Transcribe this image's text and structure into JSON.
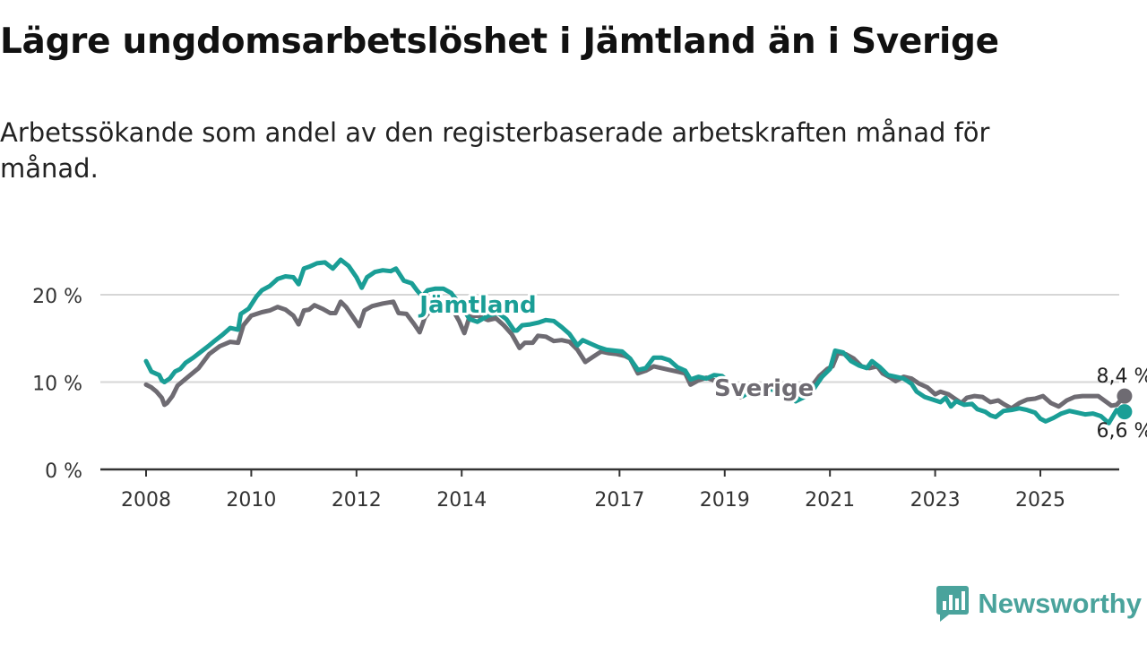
{
  "header": {
    "title": "Lägre ungdomsarbetslöshet i Jämtland än i Sverige",
    "subtitle": "Arbetssökande som andel av den registerbaserade arbetskraften månad för månad."
  },
  "brand": {
    "name": "Newsworthy",
    "icon": "bar-chart-logo-icon",
    "color": "#4aa39c"
  },
  "chart_data": {
    "type": "line",
    "title": "Lägre ungdomsarbetslöshet i Jämtland än i Sverige",
    "subtitle": "Arbetssökande som andel av den registerbaserade arbetskraften månad för månad.",
    "xlabel": "",
    "ylabel": "",
    "xlim": [
      2008,
      2026.5
    ],
    "ylim": [
      0,
      25
    ],
    "x_ticks": [
      2008,
      2010,
      2012,
      2014,
      2017,
      2019,
      2021,
      2023,
      2025
    ],
    "x_tick_labels": [
      "2008",
      "2010",
      "2012",
      "2014",
      "2017",
      "2019",
      "2021",
      "2023",
      "2025"
    ],
    "y_ticks": [
      0,
      10,
      20
    ],
    "y_tick_labels": [
      "0 %",
      "10 %",
      "20 %"
    ],
    "grid": true,
    "legend": "inline labels",
    "series": [
      {
        "name": "Sverige",
        "color": "#6e6b72",
        "end_label": "8,4 %",
        "points": [
          [
            2008.0,
            9.7
          ],
          [
            2008.1,
            9.4
          ],
          [
            2008.2,
            8.9
          ],
          [
            2008.3,
            8.2
          ],
          [
            2008.35,
            7.4
          ],
          [
            2008.4,
            7.6
          ],
          [
            2008.5,
            8.4
          ],
          [
            2008.6,
            9.6
          ],
          [
            2008.8,
            10.6
          ],
          [
            2009.0,
            11.6
          ],
          [
            2009.2,
            13.2
          ],
          [
            2009.4,
            14.1
          ],
          [
            2009.6,
            14.6
          ],
          [
            2009.75,
            14.5
          ],
          [
            2009.85,
            16.5
          ],
          [
            2010.0,
            17.6
          ],
          [
            2010.2,
            18.0
          ],
          [
            2010.35,
            18.2
          ],
          [
            2010.5,
            18.6
          ],
          [
            2010.65,
            18.3
          ],
          [
            2010.8,
            17.6
          ],
          [
            2010.9,
            16.6
          ],
          [
            2011.0,
            18.2
          ],
          [
            2011.1,
            18.3
          ],
          [
            2011.2,
            18.8
          ],
          [
            2011.35,
            18.4
          ],
          [
            2011.5,
            17.9
          ],
          [
            2011.6,
            17.9
          ],
          [
            2011.7,
            19.2
          ],
          [
            2011.8,
            18.6
          ],
          [
            2011.95,
            17.3
          ],
          [
            2012.05,
            16.4
          ],
          [
            2012.15,
            18.2
          ],
          [
            2012.3,
            18.7
          ],
          [
            2012.5,
            19.0
          ],
          [
            2012.7,
            19.2
          ],
          [
            2012.8,
            17.9
          ],
          [
            2012.95,
            17.8
          ],
          [
            2013.1,
            16.6
          ],
          [
            2013.2,
            15.7
          ],
          [
            2013.3,
            17.4
          ],
          [
            2013.45,
            18.5
          ],
          [
            2013.6,
            19.0
          ],
          [
            2013.8,
            18.6
          ],
          [
            2013.95,
            17.0
          ],
          [
            2014.0,
            16.3
          ],
          [
            2014.05,
            15.6
          ],
          [
            2014.15,
            17.5
          ],
          [
            2014.3,
            17.6
          ],
          [
            2014.5,
            17.1
          ],
          [
            2014.65,
            17.3
          ],
          [
            2014.8,
            16.5
          ],
          [
            2014.95,
            15.5
          ],
          [
            2015.1,
            13.9
          ],
          [
            2015.2,
            14.5
          ],
          [
            2015.35,
            14.5
          ],
          [
            2015.45,
            15.3
          ],
          [
            2015.6,
            15.2
          ],
          [
            2015.75,
            14.7
          ],
          [
            2015.9,
            14.8
          ],
          [
            2016.05,
            14.6
          ],
          [
            2016.2,
            13.7
          ],
          [
            2016.35,
            12.3
          ],
          [
            2016.5,
            12.9
          ],
          [
            2016.65,
            13.5
          ],
          [
            2016.8,
            13.3
          ],
          [
            2016.95,
            13.2
          ],
          [
            2017.1,
            13.0
          ],
          [
            2017.2,
            12.7
          ],
          [
            2017.35,
            11.0
          ],
          [
            2017.5,
            11.3
          ],
          [
            2017.65,
            11.8
          ],
          [
            2017.8,
            11.6
          ],
          [
            2017.95,
            11.4
          ],
          [
            2018.1,
            11.2
          ],
          [
            2018.25,
            11.0
          ],
          [
            2018.35,
            9.7
          ],
          [
            2018.5,
            10.2
          ],
          [
            2018.65,
            10.5
          ],
          [
            2018.8,
            10.2
          ],
          [
            2018.95,
            10.0
          ],
          [
            2019.1,
            9.5
          ],
          [
            2019.2,
            9.2
          ],
          [
            2019.3,
            8.3
          ],
          [
            2019.45,
            8.9
          ],
          [
            2019.6,
            9.0
          ],
          [
            2019.75,
            9.3
          ],
          [
            2019.9,
            9.2
          ],
          [
            2020.1,
            8.5
          ],
          [
            2020.25,
            8.5
          ],
          [
            2020.35,
            7.8
          ],
          [
            2020.5,
            8.6
          ],
          [
            2020.65,
            9.5
          ],
          [
            2020.8,
            10.7
          ],
          [
            2020.95,
            11.5
          ],
          [
            2021.05,
            11.8
          ],
          [
            2021.15,
            13.3
          ],
          [
            2021.3,
            13.2
          ],
          [
            2021.45,
            12.7
          ],
          [
            2021.6,
            11.8
          ],
          [
            2021.75,
            11.6
          ],
          [
            2021.9,
            11.8
          ],
          [
            2022.0,
            11.0
          ],
          [
            2022.15,
            10.5
          ],
          [
            2022.25,
            10.1
          ],
          [
            2022.4,
            10.6
          ],
          [
            2022.55,
            10.4
          ],
          [
            2022.7,
            9.8
          ],
          [
            2022.85,
            9.4
          ],
          [
            2023.0,
            8.6
          ],
          [
            2023.1,
            8.9
          ],
          [
            2023.25,
            8.6
          ],
          [
            2023.35,
            8.2
          ],
          [
            2023.5,
            7.6
          ],
          [
            2023.6,
            8.2
          ],
          [
            2023.75,
            8.4
          ],
          [
            2023.9,
            8.3
          ],
          [
            2024.05,
            7.7
          ],
          [
            2024.2,
            7.9
          ],
          [
            2024.3,
            7.5
          ],
          [
            2024.45,
            7.0
          ],
          [
            2024.6,
            7.6
          ],
          [
            2024.75,
            8.0
          ],
          [
            2024.9,
            8.1
          ],
          [
            2025.05,
            8.4
          ],
          [
            2025.2,
            7.6
          ],
          [
            2025.35,
            7.2
          ],
          [
            2025.5,
            7.9
          ],
          [
            2025.65,
            8.3
          ],
          [
            2025.8,
            8.4
          ],
          [
            2026.1,
            8.4
          ],
          [
            2026.35,
            7.3
          ],
          [
            2026.45,
            7.4
          ],
          [
            2026.6,
            8.4
          ]
        ]
      },
      {
        "name": "Jämtland",
        "color": "#1a9e96",
        "end_label": "6,6 %",
        "points": [
          [
            2008.0,
            12.4
          ],
          [
            2008.1,
            11.2
          ],
          [
            2008.25,
            10.8
          ],
          [
            2008.3,
            10.2
          ],
          [
            2008.35,
            10.0
          ],
          [
            2008.45,
            10.4
          ],
          [
            2008.55,
            11.2
          ],
          [
            2008.65,
            11.5
          ],
          [
            2008.75,
            12.2
          ],
          [
            2008.9,
            12.8
          ],
          [
            2009.05,
            13.5
          ],
          [
            2009.2,
            14.2
          ],
          [
            2009.3,
            14.7
          ],
          [
            2009.45,
            15.4
          ],
          [
            2009.6,
            16.2
          ],
          [
            2009.75,
            16.0
          ],
          [
            2009.8,
            17.8
          ],
          [
            2009.95,
            18.4
          ],
          [
            2010.1,
            19.8
          ],
          [
            2010.2,
            20.5
          ],
          [
            2010.35,
            21.0
          ],
          [
            2010.5,
            21.8
          ],
          [
            2010.65,
            22.1
          ],
          [
            2010.8,
            22.0
          ],
          [
            2010.9,
            21.2
          ],
          [
            2011.0,
            23.0
          ],
          [
            2011.1,
            23.2
          ],
          [
            2011.25,
            23.6
          ],
          [
            2011.4,
            23.7
          ],
          [
            2011.55,
            23.0
          ],
          [
            2011.7,
            24.0
          ],
          [
            2011.85,
            23.3
          ],
          [
            2012.0,
            22.0
          ],
          [
            2012.1,
            20.8
          ],
          [
            2012.2,
            22.0
          ],
          [
            2012.35,
            22.6
          ],
          [
            2012.5,
            22.8
          ],
          [
            2012.65,
            22.7
          ],
          [
            2012.75,
            23.0
          ],
          [
            2012.9,
            21.6
          ],
          [
            2013.05,
            21.3
          ],
          [
            2013.15,
            20.5
          ],
          [
            2013.25,
            19.8
          ],
          [
            2013.35,
            20.5
          ],
          [
            2013.5,
            20.7
          ],
          [
            2013.65,
            20.7
          ],
          [
            2013.8,
            20.2
          ],
          [
            2013.95,
            19.0
          ],
          [
            2014.05,
            18.2
          ],
          [
            2014.15,
            17.2
          ],
          [
            2014.3,
            16.9
          ],
          [
            2014.5,
            17.6
          ],
          [
            2014.7,
            17.9
          ],
          [
            2014.85,
            17.2
          ],
          [
            2015.0,
            15.9
          ],
          [
            2015.05,
            15.9
          ],
          [
            2015.15,
            16.5
          ],
          [
            2015.3,
            16.6
          ],
          [
            2015.45,
            16.8
          ],
          [
            2015.6,
            17.1
          ],
          [
            2015.75,
            17.0
          ],
          [
            2015.9,
            16.3
          ],
          [
            2016.05,
            15.5
          ],
          [
            2016.2,
            14.2
          ],
          [
            2016.3,
            14.8
          ],
          [
            2016.45,
            14.4
          ],
          [
            2016.6,
            14.0
          ],
          [
            2016.75,
            13.7
          ],
          [
            2016.9,
            13.6
          ],
          [
            2017.05,
            13.5
          ],
          [
            2017.2,
            12.7
          ],
          [
            2017.35,
            11.4
          ],
          [
            2017.5,
            11.6
          ],
          [
            2017.65,
            12.8
          ],
          [
            2017.8,
            12.8
          ],
          [
            2017.95,
            12.5
          ],
          [
            2018.1,
            11.7
          ],
          [
            2018.25,
            11.3
          ],
          [
            2018.35,
            10.3
          ],
          [
            2018.5,
            10.6
          ],
          [
            2018.65,
            10.4
          ],
          [
            2018.8,
            10.8
          ],
          [
            2018.95,
            10.7
          ],
          [
            2019.1,
            9.9
          ],
          [
            2019.2,
            9.5
          ],
          [
            2019.35,
            8.4
          ],
          [
            2019.5,
            9.0
          ],
          [
            2019.65,
            9.1
          ],
          [
            2019.85,
            9.2
          ],
          [
            2020.0,
            9.0
          ],
          [
            2020.15,
            8.6
          ],
          [
            2020.25,
            8.2
          ],
          [
            2020.35,
            7.8
          ],
          [
            2020.55,
            8.4
          ],
          [
            2020.7,
            9.3
          ],
          [
            2020.85,
            10.6
          ],
          [
            2021.0,
            11.5
          ],
          [
            2021.1,
            13.6
          ],
          [
            2021.25,
            13.4
          ],
          [
            2021.4,
            12.4
          ],
          [
            2021.55,
            11.9
          ],
          [
            2021.7,
            11.6
          ],
          [
            2021.8,
            12.4
          ],
          [
            2021.95,
            11.7
          ],
          [
            2022.1,
            10.8
          ],
          [
            2022.25,
            10.6
          ],
          [
            2022.4,
            10.4
          ],
          [
            2022.55,
            9.8
          ],
          [
            2022.65,
            8.9
          ],
          [
            2022.8,
            8.3
          ],
          [
            2022.95,
            8.0
          ],
          [
            2023.1,
            7.7
          ],
          [
            2023.2,
            8.2
          ],
          [
            2023.3,
            7.2
          ],
          [
            2023.4,
            7.8
          ],
          [
            2023.55,
            7.4
          ],
          [
            2023.7,
            7.5
          ],
          [
            2023.8,
            6.9
          ],
          [
            2023.95,
            6.6
          ],
          [
            2024.05,
            6.2
          ],
          [
            2024.15,
            6.0
          ],
          [
            2024.3,
            6.7
          ],
          [
            2024.45,
            6.8
          ],
          [
            2024.6,
            7.0
          ],
          [
            2024.75,
            6.8
          ],
          [
            2024.9,
            6.5
          ],
          [
            2025.0,
            5.8
          ],
          [
            2025.1,
            5.5
          ],
          [
            2025.25,
            5.9
          ],
          [
            2025.4,
            6.4
          ],
          [
            2025.55,
            6.7
          ],
          [
            2025.7,
            6.5
          ],
          [
            2025.85,
            6.3
          ],
          [
            2026.0,
            6.4
          ],
          [
            2026.15,
            6.1
          ],
          [
            2026.3,
            5.3
          ],
          [
            2026.45,
            6.8
          ],
          [
            2026.55,
            6.6
          ],
          [
            2026.6,
            6.6
          ]
        ]
      }
    ]
  }
}
